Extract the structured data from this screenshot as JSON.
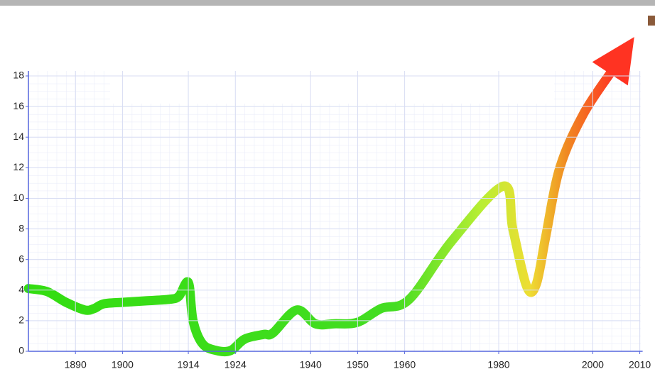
{
  "chart_data": {
    "type": "line",
    "x": [
      1880,
      1884,
      1888,
      1892,
      1894,
      1896,
      1900,
      1905,
      1910,
      1912,
      1914,
      1915,
      1917,
      1920,
      1923,
      1926,
      1930,
      1932,
      1937,
      1941,
      1945,
      1950,
      1955,
      1961,
      1970,
      1981,
      1983,
      1986,
      1988,
      1990,
      1993,
      1998,
      2004
    ],
    "series": [
      {
        "values": [
          4.1,
          3.9,
          3.2,
          2.7,
          2.8,
          3.1,
          3.2,
          3.3,
          3.4,
          3.6,
          4.5,
          2.0,
          0.5,
          0.05,
          0.05,
          0.8,
          1.1,
          1.2,
          2.7,
          1.8,
          1.8,
          1.9,
          2.8,
          3.4,
          7.2,
          10.8,
          8.0,
          4.2,
          4.4,
          7.5,
          12.0,
          15.5,
          18.3
        ],
        "gradient": [
          "#33dd11",
          "#44dd22",
          "#b8ee33",
          "#eedd33",
          "#f08a22",
          "#ff3322"
        ]
      }
    ],
    "xlim": [
      1880,
      2010
    ],
    "xticks": [
      1890,
      1900,
      1914,
      1924,
      1940,
      1950,
      1960,
      1980,
      2000,
      2010
    ],
    "ylim": [
      0,
      18
    ],
    "yticks": [
      0,
      2,
      4,
      6,
      8,
      10,
      12,
      14,
      16,
      18
    ],
    "grid": true,
    "arrow": true
  }
}
